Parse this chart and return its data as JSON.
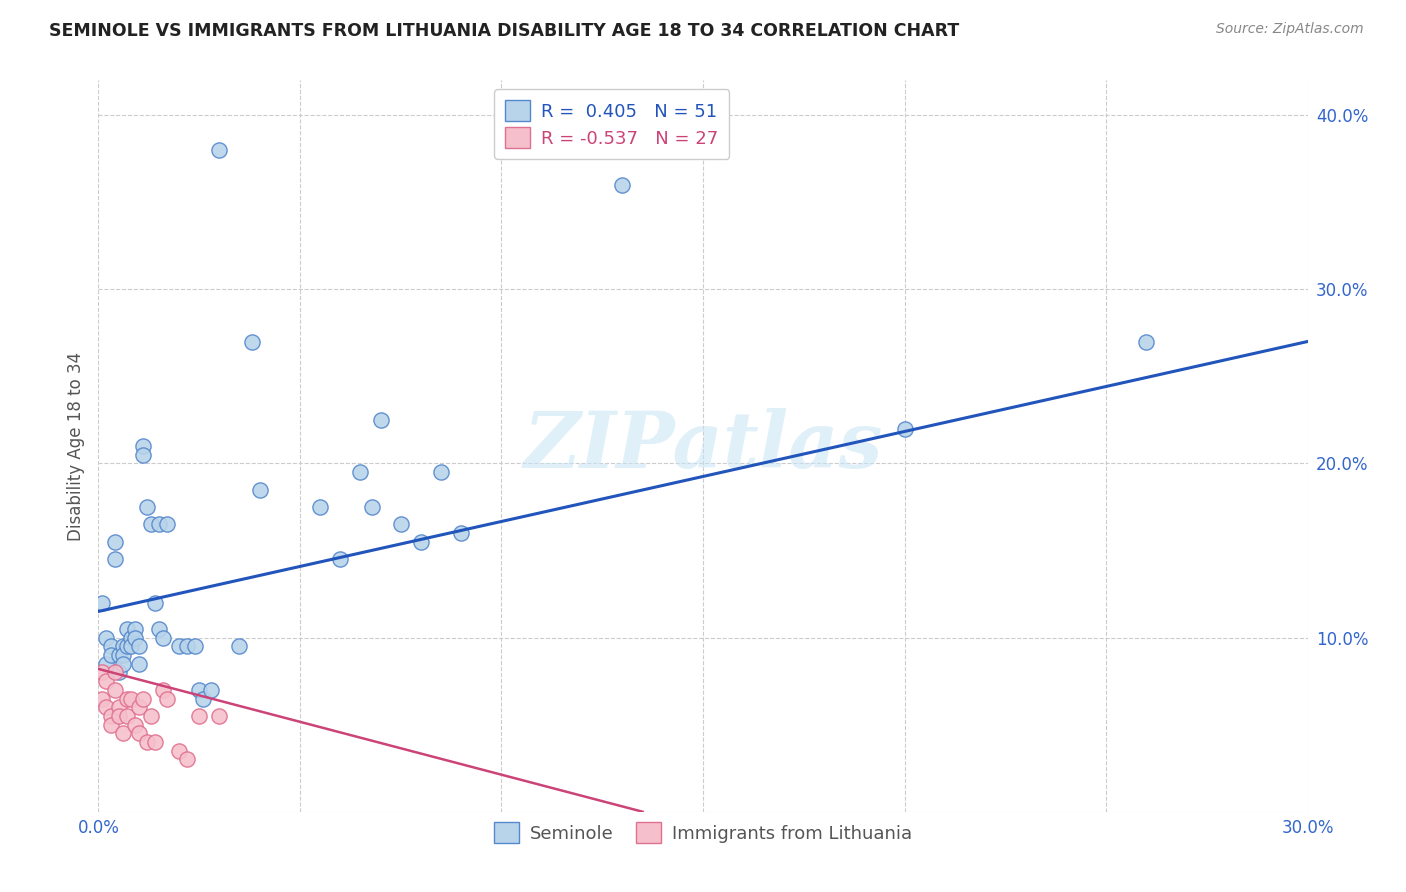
{
  "title": "SEMINOLE VS IMMIGRANTS FROM LITHUANIA DISABILITY AGE 18 TO 34 CORRELATION CHART",
  "source": "Source: ZipAtlas.com",
  "ylabel": "Disability Age 18 to 34",
  "xlim": [
    0.0,
    0.3
  ],
  "ylim": [
    0.0,
    0.42
  ],
  "x_ticks": [
    0.0,
    0.05,
    0.1,
    0.15,
    0.2,
    0.25,
    0.3
  ],
  "x_tick_labels": [
    "0.0%",
    "",
    "",
    "",
    "",
    "",
    "30.0%"
  ],
  "y_ticks_right": [
    0.0,
    0.1,
    0.2,
    0.3,
    0.4
  ],
  "y_tick_labels_right": [
    "",
    "10.0%",
    "20.0%",
    "30.0%",
    "40.0%"
  ],
  "seminole_color": "#b8d4ea",
  "seminole_edge": "#5588cc",
  "lithuania_color": "#f5c0cc",
  "lithuania_edge": "#e07090",
  "blue_line_color": "#2255bb",
  "pink_line_color": "#cc4477",
  "watermark": "ZIPatlas",
  "legend_r1": "R =  0.405",
  "legend_n1": "N = 51",
  "legend_r2": "R = -0.537",
  "legend_n2": "N = 27",
  "seminole_x": [
    0.001,
    0.002,
    0.002,
    0.003,
    0.003,
    0.004,
    0.004,
    0.005,
    0.005,
    0.006,
    0.006,
    0.006,
    0.007,
    0.007,
    0.008,
    0.008,
    0.009,
    0.009,
    0.01,
    0.01,
    0.011,
    0.011,
    0.012,
    0.013,
    0.014,
    0.015,
    0.015,
    0.016,
    0.017,
    0.02,
    0.022,
    0.024,
    0.025,
    0.026,
    0.028,
    0.03,
    0.035,
    0.038,
    0.04,
    0.055,
    0.06,
    0.065,
    0.068,
    0.07,
    0.075,
    0.08,
    0.085,
    0.09,
    0.13,
    0.2,
    0.26
  ],
  "seminole_y": [
    0.12,
    0.1,
    0.085,
    0.095,
    0.09,
    0.155,
    0.145,
    0.08,
    0.09,
    0.095,
    0.09,
    0.085,
    0.105,
    0.095,
    0.1,
    0.095,
    0.105,
    0.1,
    0.085,
    0.095,
    0.21,
    0.205,
    0.175,
    0.165,
    0.12,
    0.165,
    0.105,
    0.1,
    0.165,
    0.095,
    0.095,
    0.095,
    0.07,
    0.065,
    0.07,
    0.38,
    0.095,
    0.27,
    0.185,
    0.175,
    0.145,
    0.195,
    0.175,
    0.225,
    0.165,
    0.155,
    0.195,
    0.16,
    0.36,
    0.22,
    0.27
  ],
  "lithuania_x": [
    0.001,
    0.001,
    0.002,
    0.002,
    0.003,
    0.003,
    0.004,
    0.004,
    0.005,
    0.005,
    0.006,
    0.007,
    0.007,
    0.008,
    0.009,
    0.01,
    0.01,
    0.011,
    0.012,
    0.013,
    0.014,
    0.016,
    0.017,
    0.02,
    0.022,
    0.025,
    0.03
  ],
  "lithuania_y": [
    0.08,
    0.065,
    0.075,
    0.06,
    0.055,
    0.05,
    0.08,
    0.07,
    0.06,
    0.055,
    0.045,
    0.065,
    0.055,
    0.065,
    0.05,
    0.06,
    0.045,
    0.065,
    0.04,
    0.055,
    0.04,
    0.07,
    0.065,
    0.035,
    0.03,
    0.055,
    0.055
  ],
  "blue_line_x": [
    0.0,
    0.3
  ],
  "blue_line_y": [
    0.115,
    0.27
  ],
  "pink_line_x": [
    0.0,
    0.135
  ],
  "pink_line_y": [
    0.082,
    0.0
  ]
}
